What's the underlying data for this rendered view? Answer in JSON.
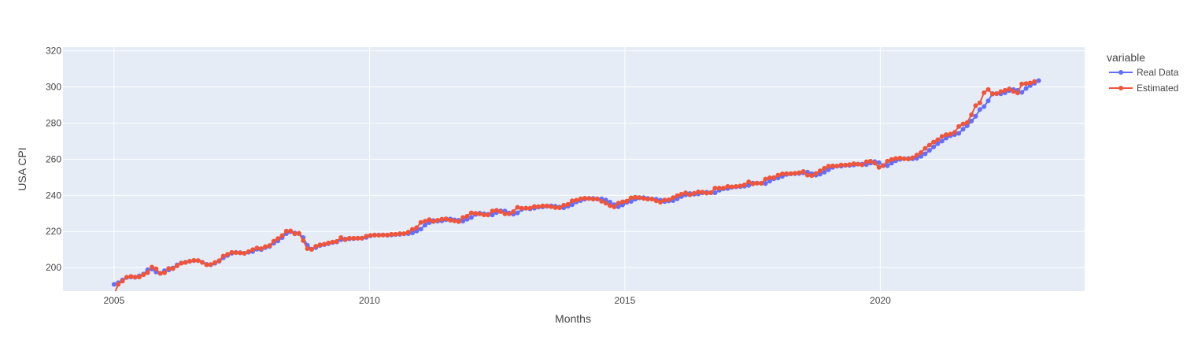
{
  "chart_data": {
    "type": "line",
    "xlabel": "Months",
    "ylabel": "USA CPI",
    "xlim": [
      2004,
      2024
    ],
    "ylim": [
      187,
      322
    ],
    "x_ticks": [
      2005,
      2010,
      2015,
      2020
    ],
    "y_ticks": [
      200,
      220,
      240,
      260,
      280,
      300,
      320
    ],
    "grid": true,
    "plot_bgcolor": "#e5ecf6",
    "legend": {
      "title": "variable",
      "position": "top-right",
      "entries": [
        "Real Data",
        "Estimated"
      ]
    },
    "anchors": {
      "x": [
        2005.0,
        2005.5,
        2005.75,
        2005.9,
        2006.3,
        2006.75,
        2006.9,
        2007.5,
        2007.9,
        2008.5,
        2008.75,
        2008.9,
        2009.5,
        2010.0,
        2010.5,
        2011.0,
        2011.4,
        2011.9,
        2012.3,
        2012.9,
        2013.2,
        2013.9,
        2014.4,
        2014.9,
        2015.4,
        2015.9,
        2016.5,
        2016.9,
        2017.4,
        2017.9,
        2018.4,
        2018.9,
        2019.3,
        2019.9,
        2020.3,
        2020.4,
        2020.8,
        2021.0,
        2021.3,
        2021.6,
        2021.9,
        2022.2,
        2022.5,
        2022.9,
        2023.1
      ],
      "y": [
        190.7,
        195.0,
        199.5,
        197.0,
        202.0,
        203.8,
        201.8,
        208.3,
        210.0,
        220.0,
        218.0,
        210.5,
        215.5,
        216.5,
        218.0,
        219.8,
        225.5,
        226.0,
        229.5,
        230.0,
        232.8,
        234.0,
        238.0,
        234.0,
        238.5,
        236.5,
        240.7,
        241.5,
        244.7,
        246.8,
        251.5,
        251.5,
        256.5,
        257.5,
        256.0,
        257.0,
        260.0,
        261.0,
        267.0,
        273.0,
        278.0,
        287.0,
        296.0,
        297.0,
        303.0
      ]
    },
    "series": [
      {
        "name": "Real Data",
        "color": "#636efa",
        "values": [
          190.7,
          191.6,
          193.1,
          194.5,
          194.8,
          194.6,
          195.4,
          196.4,
          198.8,
          199.2,
          197.6,
          196.8,
          198.3,
          198.7,
          199.8,
          201.5,
          202.5,
          202.9,
          203.5,
          203.9,
          203.9,
          202.9,
          201.8,
          201.5,
          202.4,
          203.5,
          205.4,
          206.7,
          207.9,
          208.4,
          208.3,
          207.9,
          208.5,
          208.9,
          210.2,
          210.0,
          211.1,
          211.7,
          213.5,
          214.8,
          216.6,
          218.8,
          219.9,
          219.1,
          218.8,
          216.6,
          212.4,
          210.2,
          211.1,
          212.2,
          212.7,
          213.2,
          213.9,
          214.2,
          215.4,
          215.8,
          215.9,
          216.0,
          216.2,
          216.3,
          216.7,
          217.6,
          217.9,
          218.0,
          218.0,
          217.9,
          218.0,
          218.3,
          218.4,
          218.7,
          218.8,
          219.2,
          220.2,
          221.3,
          223.5,
          224.9,
          226.0,
          225.7,
          225.9,
          226.5,
          226.9,
          226.4,
          226.2,
          225.7,
          226.7,
          227.7,
          229.4,
          230.1,
          229.8,
          229.5,
          229.1,
          230.4,
          231.4,
          231.3,
          230.2,
          229.6,
          230.3,
          232.2,
          232.8,
          232.5,
          232.9,
          233.5,
          233.6,
          233.9,
          234.1,
          233.9,
          233.5,
          233.1,
          233.9,
          234.8,
          236.3,
          237.1,
          237.9,
          238.3,
          238.3,
          237.9,
          238.0,
          237.4,
          236.2,
          234.8,
          233.7,
          234.7,
          236.1,
          236.6,
          237.8,
          238.6,
          238.7,
          238.3,
          238.0,
          237.8,
          237.3,
          236.5,
          236.9,
          237.1,
          238.1,
          239.3,
          240.2,
          241.0,
          240.6,
          240.8,
          241.4,
          241.7,
          241.4,
          241.4,
          242.8,
          243.6,
          243.8,
          244.5,
          244.7,
          244.8,
          245.0,
          245.5,
          246.8,
          246.7,
          246.7,
          246.5,
          247.9,
          249.2,
          249.6,
          250.5,
          251.6,
          251.9,
          252.0,
          252.1,
          252.4,
          252.9,
          252.0,
          251.2,
          251.7,
          252.8,
          254.2,
          255.5,
          256.1,
          256.1,
          256.6,
          256.6,
          256.8,
          257.3,
          257.3,
          257.0,
          257.9,
          258.7,
          258.1,
          256.4,
          256.4,
          257.8,
          259.1,
          259.9,
          260.3,
          260.4,
          260.2,
          260.5,
          261.6,
          263.0,
          264.9,
          266.8,
          268.6,
          270.0,
          271.7,
          273.0,
          273.6,
          274.3,
          276.6,
          278.5,
          281.1,
          283.7,
          287.5,
          289.1,
          292.3,
          296.3,
          296.3,
          296.2,
          296.8,
          298.0,
          298.6,
          298.1,
          297.0,
          299.2,
          300.8,
          302.0,
          303.5
        ]
      },
      {
        "name": "Estimated",
        "color": "#ef553b",
        "values": [
          185.0,
          190.7,
          192.5,
          194.6,
          195.1,
          194.7,
          194.8,
          196.0,
          197.2,
          200.3,
          199.3,
          196.8,
          197.1,
          199.5,
          199.4,
          201.0,
          202.4,
          202.9,
          203.5,
          204.0,
          203.9,
          202.9,
          201.5,
          201.7,
          202.8,
          203.8,
          206.4,
          207.3,
          208.4,
          208.3,
          208.1,
          207.9,
          208.8,
          209.9,
          210.8,
          210.5,
          211.6,
          212.2,
          214.6,
          216.1,
          217.7,
          220.2,
          220.3,
          218.7,
          219.0,
          214.9,
          210.5,
          210.1,
          211.8,
          212.6,
          212.9,
          213.6,
          214.1,
          214.5,
          216.6,
          215.4,
          216.2,
          216.2,
          216.2,
          216.2,
          217.4,
          217.8,
          218.0,
          217.9,
          218.0,
          218.0,
          218.4,
          218.4,
          218.8,
          218.8,
          219.6,
          221.2,
          222.1,
          225.0,
          225.7,
          226.5,
          225.5,
          226.2,
          226.8,
          227.0,
          226.2,
          225.9,
          225.4,
          227.7,
          228.4,
          230.3,
          230.0,
          229.7,
          229.2,
          229.1,
          231.3,
          231.7,
          231.0,
          229.7,
          229.7,
          231.0,
          233.4,
          232.8,
          232.9,
          232.9,
          233.8,
          233.7,
          234.1,
          234.1,
          233.7,
          233.2,
          233.1,
          234.5,
          235.0,
          237.0,
          237.3,
          238.1,
          238.4,
          238.3,
          237.9,
          238.1,
          236.7,
          235.7,
          234.3,
          233.6,
          235.7,
          236.4,
          236.8,
          238.6,
          238.9,
          238.8,
          238.3,
          237.9,
          237.9,
          237.0,
          236.2,
          237.4,
          237.5,
          238.7,
          239.8,
          240.6,
          241.4,
          240.3,
          241.1,
          241.9,
          241.8,
          241.2,
          241.5,
          244.0,
          244.0,
          244.0,
          244.9,
          244.7,
          244.9,
          245.2,
          245.8,
          247.5,
          246.3,
          246.8,
          246.6,
          249.0,
          249.7,
          249.8,
          251.2,
          251.9,
          252.0,
          252.0,
          252.2,
          252.5,
          253.2,
          251.2,
          250.9,
          252.1,
          253.6,
          255.0,
          256.1,
          256.3,
          256.2,
          256.8,
          256.7,
          257.0,
          257.5,
          257.2,
          256.9,
          258.6,
          258.9,
          257.8,
          255.5,
          256.5,
          258.9,
          259.8,
          260.4,
          260.6,
          260.3,
          260.1,
          260.8,
          262.3,
          263.7,
          266.0,
          267.8,
          269.5,
          270.8,
          272.6,
          273.6,
          273.9,
          274.9,
          278.1,
          279.5,
          280.3,
          284.6,
          289.7,
          291.2,
          296.8,
          298.6,
          296.1,
          296.3,
          297.4,
          298.1,
          298.9,
          297.5,
          296.7,
          301.6,
          301.9,
          302.2,
          303.0
        ]
      }
    ]
  }
}
